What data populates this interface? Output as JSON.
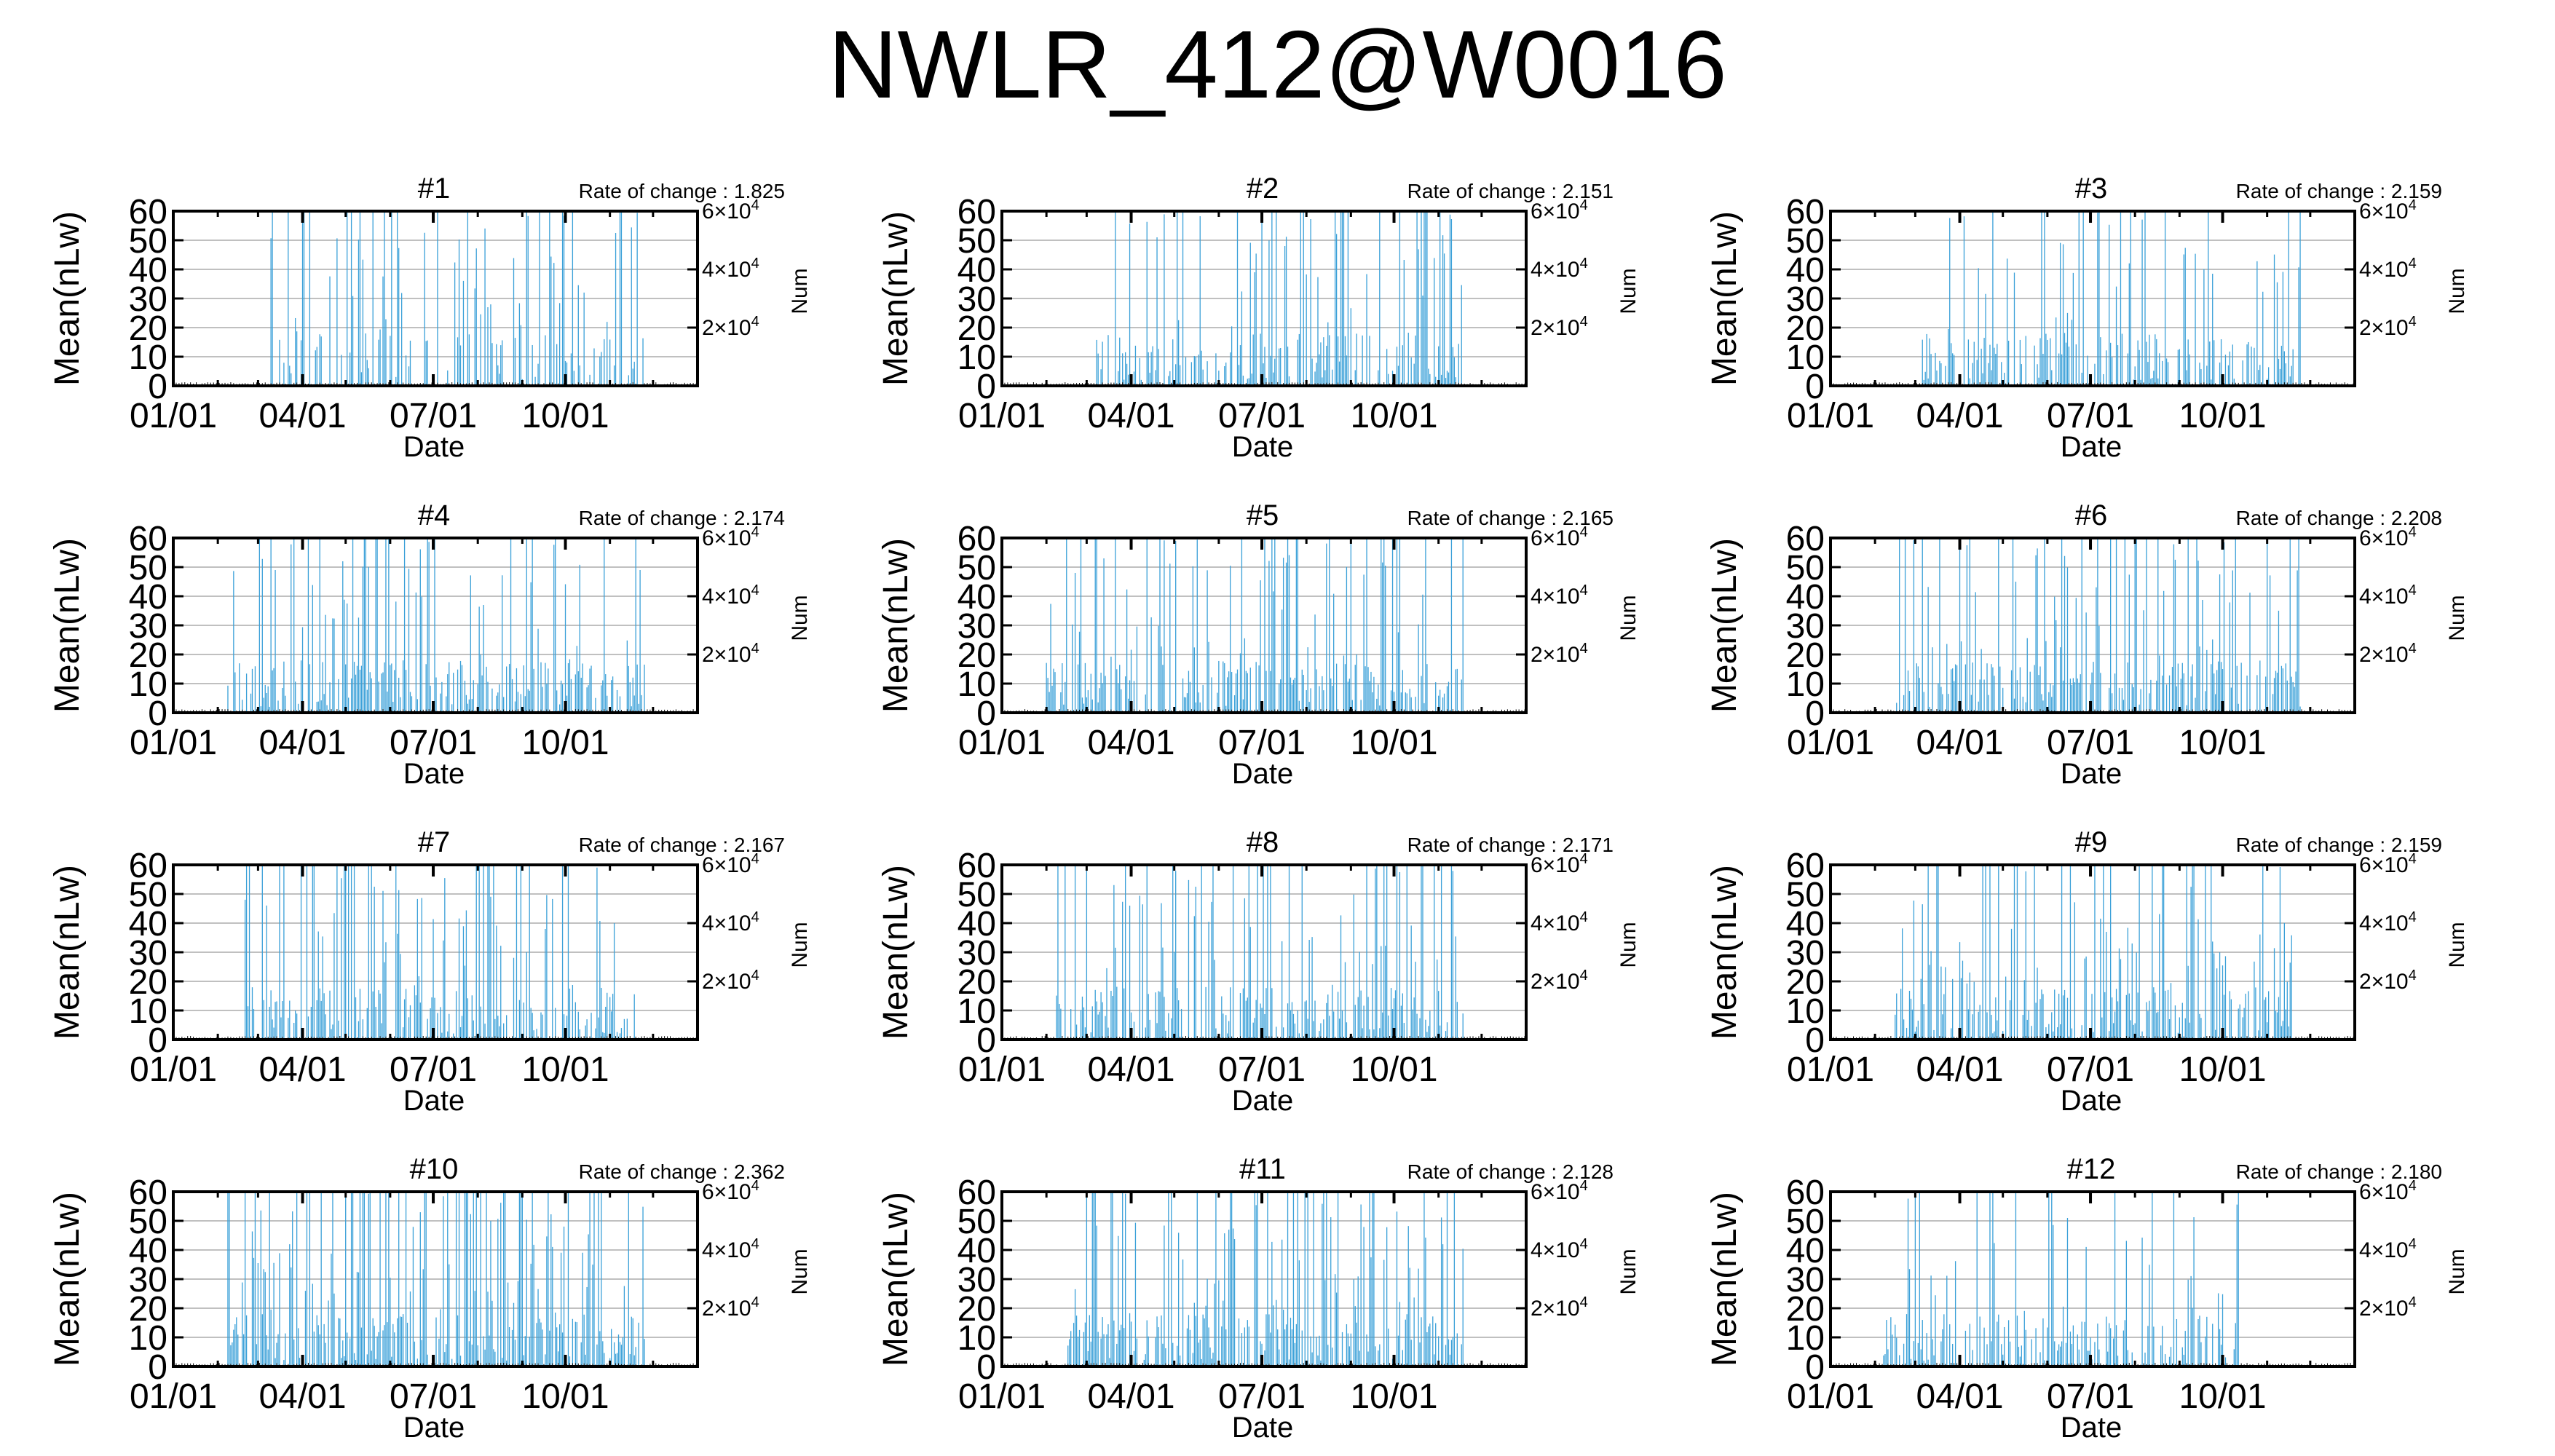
{
  "title": "NWLR_412@W0016",
  "colors": {
    "data": "#3aa0d8",
    "grid": "#9a9a9a",
    "frame": "#000000"
  },
  "chart_data": [
    {
      "type": "bar",
      "panel": "#1",
      "rate_of_change_label": "Rate of change : 1.825",
      "xlabel": "Date",
      "ylabel": "Mean(nLw)",
      "y2label": "Num",
      "x_ticks": [
        "01/01",
        "04/01",
        "07/01",
        "10/01"
      ],
      "y_ticks": [
        0,
        10,
        20,
        30,
        40,
        50,
        60
      ],
      "y2_ticks": [
        "2×10⁴",
        "4×10⁴",
        "6×10⁴"
      ],
      "xlim": [
        "01/01",
        "12/31"
      ],
      "ylim": [
        0,
        60
      ],
      "grid": "horizontal",
      "density": 0.45,
      "spikiness": 0.5,
      "active_range": [
        0.17,
        0.9
      ]
    },
    {
      "type": "bar",
      "panel": "#2",
      "rate_of_change_label": "Rate of change : 2.151",
      "xlabel": "Date",
      "ylabel": "Mean(nLw)",
      "y2label": "Num",
      "x_ticks": [
        "01/01",
        "04/01",
        "07/01",
        "10/01"
      ],
      "y_ticks": [
        0,
        10,
        20,
        30,
        40,
        50,
        60
      ],
      "y2_ticks": [
        "2×10⁴",
        "4×10⁴",
        "6×10⁴"
      ],
      "xlim": [
        "01/01",
        "12/31"
      ],
      "ylim": [
        0,
        60
      ],
      "grid": "horizontal",
      "density": 0.6,
      "spikiness": 0.35,
      "active_range": [
        0.17,
        0.88
      ]
    },
    {
      "type": "bar",
      "panel": "#3",
      "rate_of_change_label": "Rate of change : 2.159",
      "xlabel": "Date",
      "ylabel": "Mean(nLw)",
      "y2label": "Num",
      "x_ticks": [
        "01/01",
        "04/01",
        "07/01",
        "10/01"
      ],
      "y_ticks": [
        0,
        10,
        20,
        30,
        40,
        50,
        60
      ],
      "y2_ticks": [
        "2×10⁴",
        "4×10⁴",
        "6×10⁴"
      ],
      "xlim": [
        "01/01",
        "12/31"
      ],
      "ylim": [
        0,
        60
      ],
      "grid": "horizontal",
      "density": 0.6,
      "spikiness": 0.35,
      "active_range": [
        0.17,
        0.9
      ]
    },
    {
      "type": "bar",
      "panel": "#4",
      "rate_of_change_label": "Rate of change : 2.174",
      "xlabel": "Date",
      "ylabel": "Mean(nLw)",
      "y2label": "Num",
      "x_ticks": [
        "01/01",
        "04/01",
        "07/01",
        "10/01"
      ],
      "y_ticks": [
        0,
        10,
        20,
        30,
        40,
        50,
        60
      ],
      "y2_ticks": [
        "2×10⁴",
        "4×10⁴",
        "6×10⁴"
      ],
      "xlim": [
        "01/01",
        "12/31"
      ],
      "ylim": [
        0,
        60
      ],
      "grid": "horizontal",
      "density": 0.65,
      "spikiness": 0.35,
      "active_range": [
        0.1,
        0.9
      ]
    },
    {
      "type": "bar",
      "panel": "#5",
      "rate_of_change_label": "Rate of change : 2.165",
      "xlabel": "Date",
      "ylabel": "Mean(nLw)",
      "y2label": "Num",
      "x_ticks": [
        "01/01",
        "04/01",
        "07/01",
        "10/01"
      ],
      "y_ticks": [
        0,
        10,
        20,
        30,
        40,
        50,
        60
      ],
      "y2_ticks": [
        "2×10⁴",
        "4×10⁴",
        "6×10⁴"
      ],
      "xlim": [
        "01/01",
        "12/31"
      ],
      "ylim": [
        0,
        60
      ],
      "grid": "horizontal",
      "density": 0.6,
      "spikiness": 0.4,
      "active_range": [
        0.08,
        0.88
      ]
    },
    {
      "type": "bar",
      "panel": "#6",
      "rate_of_change_label": "Rate of change : 2.208",
      "xlabel": "Date",
      "ylabel": "Mean(nLw)",
      "y2label": "Num",
      "x_ticks": [
        "01/01",
        "04/01",
        "07/01",
        "10/01"
      ],
      "y_ticks": [
        0,
        10,
        20,
        30,
        40,
        50,
        60
      ],
      "y2_ticks": [
        "2×10⁴",
        "4×10⁴",
        "6×10⁴"
      ],
      "xlim": [
        "01/01",
        "12/31"
      ],
      "ylim": [
        0,
        60
      ],
      "grid": "horizontal",
      "density": 0.65,
      "spikiness": 0.4,
      "active_range": [
        0.12,
        0.9
      ]
    },
    {
      "type": "bar",
      "panel": "#7",
      "rate_of_change_label": "Rate of change : 2.167",
      "xlabel": "Date",
      "ylabel": "Mean(nLw)",
      "y2label": "Num",
      "x_ticks": [
        "01/01",
        "04/01",
        "07/01",
        "10/01"
      ],
      "y_ticks": [
        0,
        10,
        20,
        30,
        40,
        50,
        60
      ],
      "y2_ticks": [
        "2×10⁴",
        "4×10⁴",
        "6×10⁴"
      ],
      "xlim": [
        "01/01",
        "12/31"
      ],
      "ylim": [
        0,
        60
      ],
      "grid": "horizontal",
      "density": 0.6,
      "spikiness": 0.4,
      "active_range": [
        0.13,
        0.88
      ]
    },
    {
      "type": "bar",
      "panel": "#8",
      "rate_of_change_label": "Rate of change : 2.171",
      "xlabel": "Date",
      "ylabel": "Mean(nLw)",
      "y2label": "Num",
      "x_ticks": [
        "01/01",
        "04/01",
        "07/01",
        "10/01"
      ],
      "y_ticks": [
        0,
        10,
        20,
        30,
        40,
        50,
        60
      ],
      "y2_ticks": [
        "2×10⁴",
        "4×10⁴",
        "6×10⁴"
      ],
      "xlim": [
        "01/01",
        "12/31"
      ],
      "ylim": [
        0,
        60
      ],
      "grid": "horizontal",
      "density": 0.6,
      "spikiness": 0.35,
      "active_range": [
        0.1,
        0.88
      ]
    },
    {
      "type": "bar",
      "panel": "#9",
      "rate_of_change_label": "Rate of change : 2.159",
      "xlabel": "Date",
      "ylabel": "Mean(nLw)",
      "y2label": "Num",
      "x_ticks": [
        "01/01",
        "04/01",
        "07/01",
        "10/01"
      ],
      "y_ticks": [
        0,
        10,
        20,
        30,
        40,
        50,
        60
      ],
      "y2_ticks": [
        "2×10⁴",
        "4×10⁴",
        "6×10⁴"
      ],
      "xlim": [
        "01/01",
        "12/31"
      ],
      "ylim": [
        0,
        60
      ],
      "grid": "horizontal",
      "density": 0.65,
      "spikiness": 0.4,
      "active_range": [
        0.12,
        0.88
      ]
    },
    {
      "type": "bar",
      "panel": "#10",
      "rate_of_change_label": "Rate of change : 2.362",
      "xlabel": "Date",
      "ylabel": "Mean(nLw)",
      "y2label": "Num",
      "x_ticks": [
        "01/01",
        "04/01",
        "07/01",
        "10/01"
      ],
      "y_ticks": [
        0,
        10,
        20,
        30,
        40,
        50,
        60
      ],
      "y2_ticks": [
        "2×10⁴",
        "4×10⁴",
        "6×10⁴"
      ],
      "xlim": [
        "01/01",
        "12/31"
      ],
      "ylim": [
        0,
        60
      ],
      "grid": "horizontal",
      "density": 0.75,
      "spikiness": 0.45,
      "active_range": [
        0.1,
        0.9
      ]
    },
    {
      "type": "bar",
      "panel": "#11",
      "rate_of_change_label": "Rate of change : 2.128",
      "xlabel": "Date",
      "ylabel": "Mean(nLw)",
      "y2label": "Num",
      "x_ticks": [
        "01/01",
        "04/01",
        "07/01",
        "10/01"
      ],
      "y_ticks": [
        0,
        10,
        20,
        30,
        40,
        50,
        60
      ],
      "y2_ticks": [
        "2×10⁴",
        "4×10⁴",
        "6×10⁴"
      ],
      "xlim": [
        "01/01",
        "12/31"
      ],
      "ylim": [
        0,
        60
      ],
      "grid": "horizontal",
      "density": 0.75,
      "spikiness": 0.45,
      "active_range": [
        0.12,
        0.88
      ]
    },
    {
      "type": "bar",
      "panel": "#12",
      "rate_of_change_label": "Rate of change : 2.180",
      "xlabel": "Date",
      "ylabel": "Mean(nLw)",
      "y2label": "Num",
      "x_ticks": [
        "01/01",
        "04/01",
        "07/01",
        "10/01"
      ],
      "y_ticks": [
        0,
        10,
        20,
        30,
        40,
        50,
        60
      ],
      "y2_ticks": [
        "2×10⁴",
        "4×10⁴",
        "6×10⁴"
      ],
      "xlim": [
        "01/01",
        "12/31"
      ],
      "ylim": [
        0,
        60
      ],
      "grid": "horizontal",
      "density": 0.55,
      "spikiness": 0.35,
      "active_range": [
        0.1,
        0.78
      ]
    }
  ]
}
